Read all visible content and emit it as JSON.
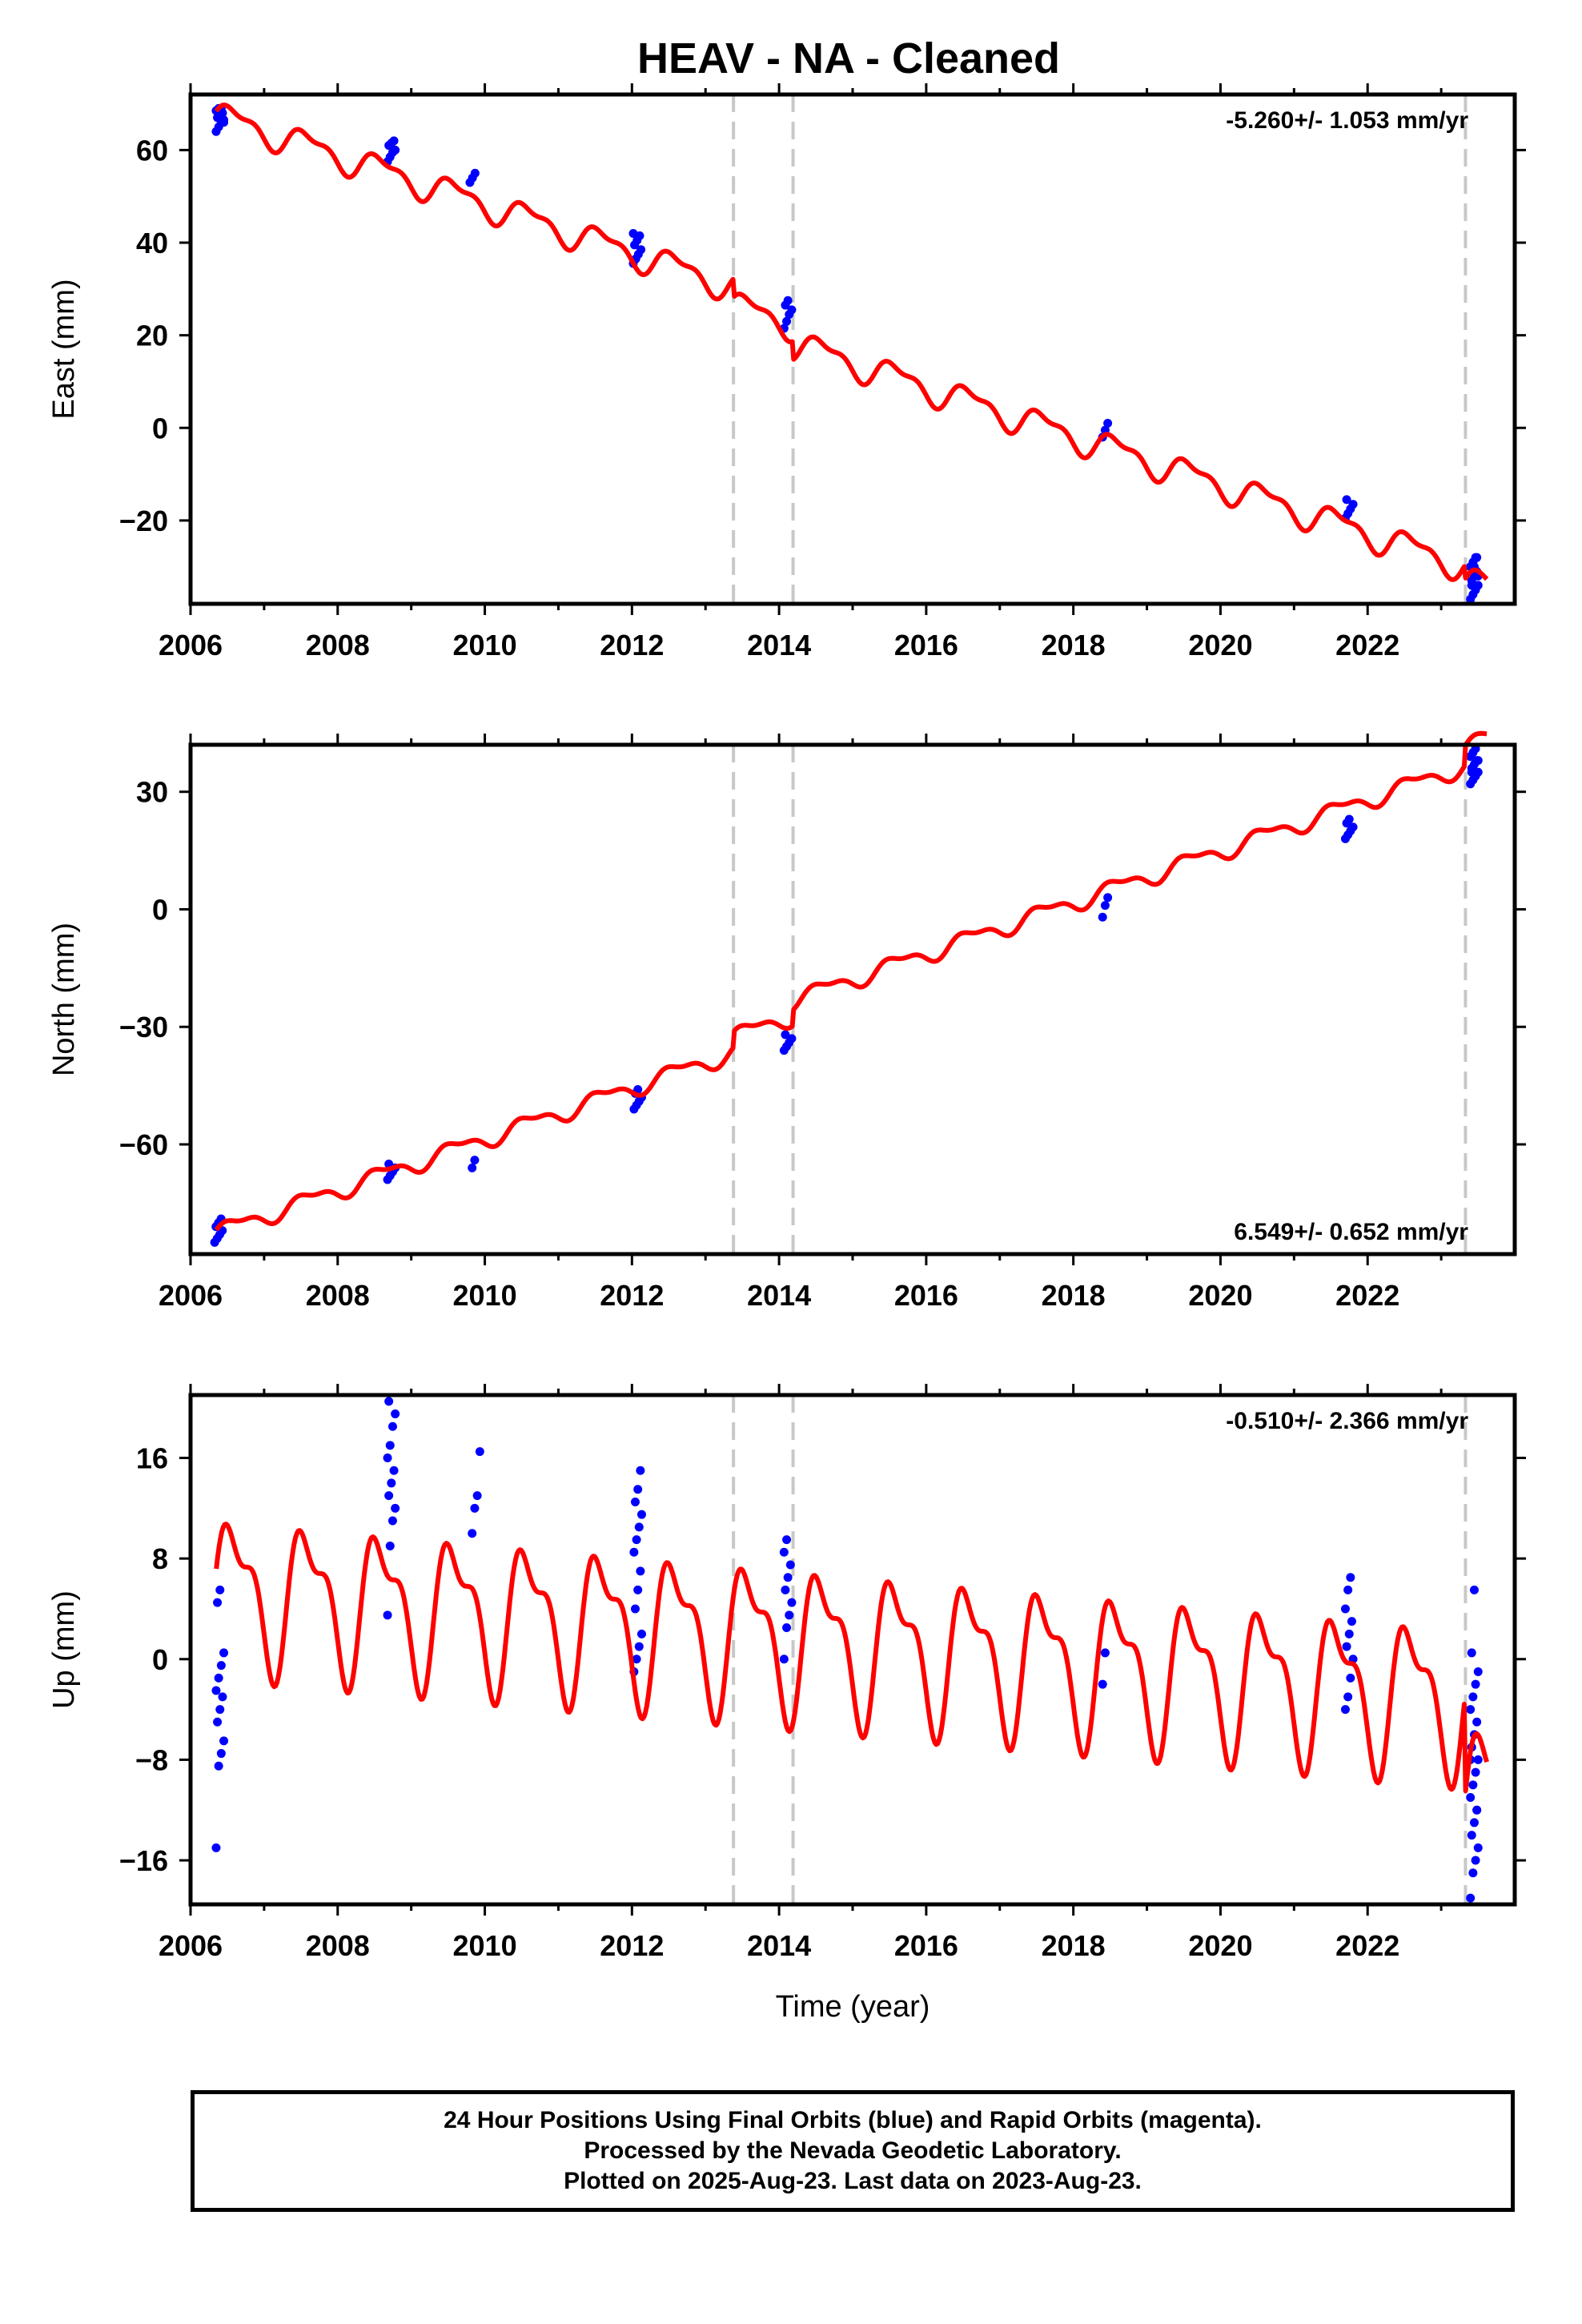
{
  "title": "HEAV  - NA - Cleaned",
  "footer": {
    "line1": "24 Hour Positions Using Final Orbits (blue) and Rapid Orbits (magenta).",
    "line2": "Processed by the Nevada Geodetic Laboratory.",
    "line3": "Plotted on 2025-Aug-23. Last data on 2023-Aug-23."
  },
  "colors": {
    "model": "#ff0000",
    "data": "#0000ff",
    "break_lines": "#c8c8c8",
    "axes": "#000000"
  },
  "chart_data": [
    {
      "type": "scatter",
      "panel": "east",
      "ylabel": "East (mm)",
      "xlabel": "",
      "rate_label": "-5.260+/- 1.053 mm/yr",
      "xlim": [
        2006.0,
        2024.0
      ],
      "ylim": [
        -38,
        72
      ],
      "xticks": [
        2006,
        2008,
        2010,
        2012,
        2014,
        2016,
        2018,
        2020,
        2022
      ],
      "yticks": [
        -20,
        0,
        20,
        40,
        60
      ],
      "ytick_labels": [
        "−20",
        "0",
        "20",
        "40",
        "60"
      ],
      "breaks": [
        2013.38,
        2014.19,
        2023.33
      ],
      "model": {
        "start": 2006.35,
        "end": 2023.62,
        "trend": [
          2006.35,
          67.5,
          -5.26
        ],
        "amp": 2.8,
        "offsets": [
          [
            2013.38,
            -4
          ],
          [
            2014.19,
            -4
          ],
          [
            2023.33,
            -3
          ]
        ]
      },
      "clusters": [
        {
          "x": 2006.4,
          "y": [
            64,
            65,
            66,
            66.5,
            67,
            67.5,
            68,
            68.5,
            69,
            69,
            66
          ]
        },
        {
          "x": 2008.73,
          "y": [
            57.5,
            58.5,
            59.5,
            60,
            61,
            61.5,
            62
          ]
        },
        {
          "x": 2009.85,
          "y": [
            53,
            54,
            55
          ]
        },
        {
          "x": 2012.07,
          "y": [
            35.5,
            36.5,
            37.5,
            38.5,
            39.5,
            40.5,
            41.5,
            42
          ]
        },
        {
          "x": 2014.12,
          "y": [
            21.5,
            23,
            24.5,
            25.5,
            26.5,
            27.5
          ]
        },
        {
          "x": 2018.45,
          "y": [
            -2,
            -0.5,
            1
          ]
        },
        {
          "x": 2021.75,
          "y": [
            -19.5,
            -18.5,
            -17.5,
            -16.5,
            -15.5
          ]
        },
        {
          "x": 2023.45,
          "y": [
            -37,
            -36,
            -35,
            -34,
            -33,
            -32,
            -31,
            -30,
            -29,
            -28,
            -32,
            -34,
            -30,
            -28
          ]
        }
      ]
    },
    {
      "type": "scatter",
      "panel": "north",
      "ylabel": "North (mm)",
      "xlabel": "",
      "rate_label": "6.549+/- 0.652 mm/yr",
      "xlim": [
        2006.0,
        2024.0
      ],
      "ylim": [
        -88,
        42
      ],
      "xticks": [
        2006,
        2008,
        2010,
        2012,
        2014,
        2016,
        2018,
        2020,
        2022
      ],
      "yticks": [
        -60,
        -30,
        0,
        30
      ],
      "ytick_labels": [
        "−60",
        "−30",
        "0",
        "30"
      ],
      "breaks": [
        2013.38,
        2014.19,
        2023.33
      ],
      "model": {
        "start": 2006.35,
        "end": 2023.62,
        "trend": [
          2006.35,
          -82.5,
          6.549
        ],
        "amp": 2.0,
        "offsets": [
          [
            2013.38,
            4
          ],
          [
            2014.19,
            4
          ],
          [
            2023.33,
            5
          ]
        ]
      },
      "clusters": [
        {
          "x": 2006.38,
          "y": [
            -85,
            -84,
            -83,
            -82,
            -81,
            -80,
            -79
          ]
        },
        {
          "x": 2008.73,
          "y": [
            -69,
            -68,
            -67,
            -66,
            -65
          ]
        },
        {
          "x": 2009.88,
          "y": [
            -66,
            -64
          ]
        },
        {
          "x": 2012.08,
          "y": [
            -51,
            -50,
            -49,
            -48,
            -47,
            -46
          ]
        },
        {
          "x": 2014.12,
          "y": [
            -36,
            -35,
            -34,
            -33,
            -32
          ]
        },
        {
          "x": 2018.45,
          "y": [
            -2,
            1,
            3
          ]
        },
        {
          "x": 2021.75,
          "y": [
            18,
            19,
            20,
            21,
            22,
            23
          ]
        },
        {
          "x": 2023.45,
          "y": [
            32,
            33,
            34,
            35,
            36,
            37,
            38,
            39,
            40,
            41,
            38,
            35
          ]
        }
      ]
    },
    {
      "type": "scatter",
      "panel": "up",
      "ylabel": "Up (mm)",
      "xlabel": "Time (year)",
      "rate_label": "-0.510+/- 2.366 mm/yr",
      "xlim": [
        2006.0,
        2024.0
      ],
      "ylim": [
        -19.5,
        21
      ],
      "xticks": [
        2006,
        2008,
        2010,
        2012,
        2014,
        2016,
        2018,
        2020,
        2022
      ],
      "yticks": [
        -16,
        -8,
        0,
        8,
        16
      ],
      "ytick_labels": [
        "−16",
        "−8",
        "0",
        "8",
        "16"
      ],
      "breaks": [
        2013.38,
        2014.19,
        2023.33
      ],
      "model": {
        "start": 2006.35,
        "end": 2023.62,
        "trend": [
          2006.35,
          5.5,
          -0.51
        ],
        "amp": 5.2,
        "offsets": [
          [
            2023.33,
            -8
          ]
        ]
      },
      "clusters": [
        {
          "x": 2006.4,
          "y": [
            -15,
            -8.5,
            -7.5,
            -6.5,
            -5,
            -4,
            -3,
            -2.5,
            -1.5,
            -0.5,
            0.5,
            4.5,
            5.5
          ]
        },
        {
          "x": 2008.73,
          "y": [
            3.5,
            9,
            11,
            12,
            13,
            14,
            15,
            16,
            17,
            18.5,
            19.5,
            20.5
          ]
        },
        {
          "x": 2009.88,
          "y": [
            10,
            12,
            13,
            16.5
          ]
        },
        {
          "x": 2012.08,
          "y": [
            -1,
            0,
            1,
            2,
            4,
            5.5,
            7,
            8.5,
            9.5,
            10.5,
            11.5,
            12.5,
            13.5,
            15
          ]
        },
        {
          "x": 2014.12,
          "y": [
            0,
            2.5,
            3.5,
            4.5,
            5.5,
            6.5,
            7.5,
            8.5,
            9.5
          ]
        },
        {
          "x": 2018.45,
          "y": [
            -2,
            0.5
          ]
        },
        {
          "x": 2021.75,
          "y": [
            -4,
            -3,
            -1.5,
            0,
            1,
            2,
            3,
            4,
            5.5,
            6.5
          ]
        },
        {
          "x": 2023.45,
          "y": [
            -19,
            -17,
            -16,
            -15,
            -14,
            -13,
            -12,
            -11,
            -10,
            -9,
            -8,
            -7,
            -6,
            -5,
            -4,
            -3,
            -2,
            -1,
            0.5,
            5.5,
            -12,
            -8
          ]
        }
      ]
    }
  ]
}
